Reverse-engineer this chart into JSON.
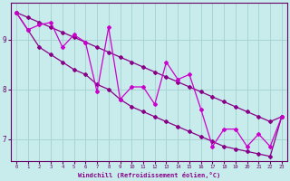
{
  "xlabel": "Windchill (Refroidissement éolien,°C)",
  "bg_color": "#c8ecec",
  "grid_color": "#aad4d4",
  "line_color": "#880088",
  "line_color2": "#cc00cc",
  "spine_color": "#660066",
  "xlim": [
    -0.5,
    23.5
  ],
  "ylim": [
    6.55,
    9.75
  ],
  "yticks": [
    7,
    8,
    9
  ],
  "xticks": [
    0,
    1,
    2,
    3,
    4,
    5,
    6,
    7,
    8,
    9,
    10,
    11,
    12,
    13,
    14,
    15,
    16,
    17,
    18,
    19,
    20,
    21,
    22,
    23
  ],
  "hours": [
    0,
    1,
    2,
    3,
    4,
    5,
    6,
    7,
    8,
    9,
    10,
    11,
    12,
    13,
    14,
    15,
    16,
    17,
    18,
    19,
    20,
    21,
    22,
    23
  ],
  "zigzag": [
    9.55,
    9.2,
    9.3,
    9.35,
    8.85,
    9.1,
    8.95,
    7.95,
    9.25,
    7.8,
    8.05,
    8.05,
    7.7,
    8.55,
    8.2,
    8.3,
    7.6,
    6.85,
    7.2,
    7.2,
    6.85,
    7.1,
    6.85,
    7.45
  ],
  "smooth_top": [
    9.55,
    9.45,
    9.35,
    9.25,
    9.15,
    9.05,
    8.95,
    8.85,
    8.75,
    8.65,
    8.55,
    8.45,
    8.35,
    8.25,
    8.15,
    8.05,
    7.95,
    7.85,
    7.75,
    7.65,
    7.55,
    7.45,
    7.35,
    7.45
  ],
  "smooth_bot": [
    9.55,
    9.2,
    8.85,
    8.7,
    8.55,
    8.4,
    8.3,
    8.1,
    8.0,
    7.8,
    7.65,
    7.55,
    7.45,
    7.35,
    7.25,
    7.15,
    7.05,
    6.95,
    6.85,
    6.8,
    6.75,
    6.7,
    6.65,
    7.45
  ]
}
